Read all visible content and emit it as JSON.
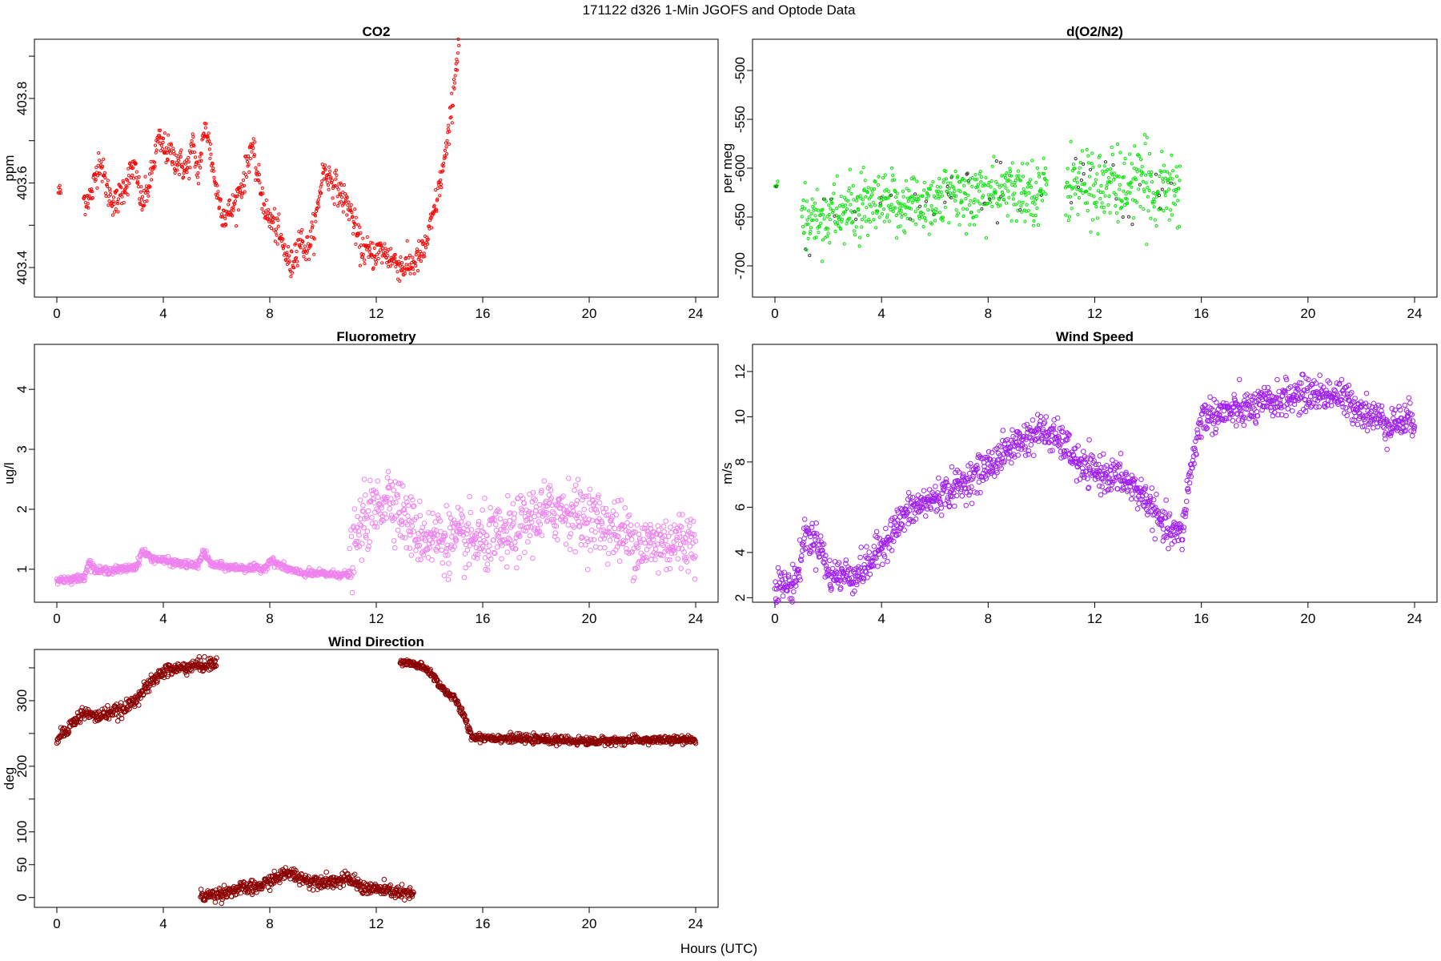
{
  "figure": {
    "main_title": "171122   d326   1-Min  JGOFS and Optode Data",
    "xlabel": "Hours (UTC)"
  },
  "colors": {
    "co2": "#ff0000",
    "o2n2": "#00e400",
    "o2n2_dark": "#2f2f2f",
    "fluoro": "#ee82ee",
    "wind_speed": "#a020f0",
    "wind_dir": "#8b0000",
    "axis": "#000000"
  },
  "chart_data": [
    {
      "id": "co2",
      "type": "scatter",
      "title": "CO2",
      "ylabel": "ppm",
      "xlim": [
        0,
        24
      ],
      "ylim": [
        403.33,
        403.94
      ],
      "xticks": [
        0,
        4,
        8,
        12,
        16,
        20,
        24
      ],
      "yticks": [
        403.4,
        403.5,
        403.6,
        403.7,
        403.8,
        403.9
      ],
      "ytick_labels": [
        "403.4",
        "",
        "403.6",
        "",
        "403.8",
        ""
      ],
      "color_key": "co2",
      "marker_size": 1.6,
      "points_per_hour": 60,
      "segments": [
        {
          "x0": 0.05,
          "x1": 0.15,
          "ctrl": [
            [
              0.05,
              403.58
            ],
            [
              0.15,
              403.58
            ]
          ],
          "noise": 0.01
        },
        {
          "x0": 1.0,
          "x1": 15.1,
          "ctrl": [
            [
              1.0,
              403.56
            ],
            [
              1.3,
              403.57
            ],
            [
              1.6,
              403.66
            ],
            [
              1.9,
              403.58
            ],
            [
              2.2,
              403.55
            ],
            [
              2.6,
              403.6
            ],
            [
              2.9,
              403.64
            ],
            [
              3.2,
              403.55
            ],
            [
              3.5,
              403.6
            ],
            [
              3.8,
              403.7
            ],
            [
              4.1,
              403.68
            ],
            [
              4.4,
              403.66
            ],
            [
              4.9,
              403.63
            ],
            [
              5.1,
              403.69
            ],
            [
              5.3,
              403.62
            ],
            [
              5.6,
              403.74
            ],
            [
              6.0,
              403.58
            ],
            [
              6.3,
              403.52
            ],
            [
              6.6,
              403.54
            ],
            [
              7.0,
              403.6
            ],
            [
              7.3,
              403.69
            ],
            [
              7.6,
              403.6
            ],
            [
              7.9,
              403.52
            ],
            [
              8.2,
              403.5
            ],
            [
              8.5,
              403.45
            ],
            [
              8.8,
              403.4
            ],
            [
              9.1,
              403.47
            ],
            [
              9.4,
              403.44
            ],
            [
              9.7,
              403.5
            ],
            [
              10.0,
              403.63
            ],
            [
              10.3,
              403.61
            ],
            [
              11.0,
              403.54
            ],
            [
              11.4,
              403.45
            ],
            [
              11.8,
              403.43
            ],
            [
              12.2,
              403.44
            ],
            [
              12.6,
              403.42
            ],
            [
              13.0,
              403.4
            ],
            [
              13.4,
              403.41
            ],
            [
              13.8,
              403.44
            ],
            [
              14.1,
              403.51
            ],
            [
              14.4,
              403.6
            ],
            [
              14.7,
              403.7
            ],
            [
              15.0,
              403.88
            ],
            [
              15.1,
              403.93
            ]
          ],
          "noise": 0.018
        }
      ]
    },
    {
      "id": "o2n2",
      "type": "scatter",
      "title": "d(O2/N2)",
      "ylabel": "per meg",
      "xlim": [
        0,
        24
      ],
      "ylim": [
        -732,
        -468
      ],
      "xticks": [
        0,
        4,
        8,
        12,
        16,
        20,
        24
      ],
      "yticks": [
        -700,
        -650,
        -600,
        -550,
        -500
      ],
      "ytick_labels": [
        "-700",
        "-650",
        "-600",
        "-550",
        "-500"
      ],
      "color_key": "o2n2",
      "marker_size": 1.6,
      "points_per_hour": 60,
      "segments": [
        {
          "x0": 0.0,
          "x1": 0.1,
          "ctrl": [
            [
              0.0,
              -618
            ],
            [
              0.1,
              -618
            ]
          ],
          "noise": 3
        },
        {
          "x0": 1.0,
          "x1": 10.2,
          "ctrl": [
            [
              1.0,
              -655
            ],
            [
              2.5,
              -645
            ],
            [
              4.0,
              -640
            ],
            [
              5.5,
              -635
            ],
            [
              7.0,
              -628
            ],
            [
              8.5,
              -625
            ],
            [
              10.2,
              -622
            ]
          ],
          "noise": 16
        },
        {
          "x0": 10.9,
          "x1": 15.2,
          "ctrl": [
            [
              10.9,
              -615
            ],
            [
              12.5,
              -620
            ],
            [
              14.0,
              -618
            ],
            [
              15.2,
              -620
            ]
          ],
          "noise": 20
        }
      ]
    },
    {
      "id": "fluoro",
      "type": "scatter",
      "title": "Fluorometry",
      "ylabel": "ug/l",
      "xlim": [
        0,
        24
      ],
      "ylim": [
        0.45,
        4.75
      ],
      "xticks": [
        0,
        4,
        8,
        12,
        16,
        20,
        24
      ],
      "yticks": [
        1,
        2,
        3,
        4
      ],
      "ytick_labels": [
        "1",
        "2",
        "3",
        "4"
      ],
      "color_key": "fluoro",
      "marker_size": 2.8,
      "points_per_hour": 60,
      "segments": [
        {
          "x0": 0.0,
          "x1": 11.0,
          "ctrl": [
            [
              0.0,
              0.82
            ],
            [
              1.0,
              0.85
            ],
            [
              1.2,
              1.12
            ],
            [
              1.5,
              0.97
            ],
            [
              2.5,
              1.0
            ],
            [
              3.0,
              1.05
            ],
            [
              3.2,
              1.3
            ],
            [
              3.6,
              1.18
            ],
            [
              4.5,
              1.1
            ],
            [
              5.3,
              1.06
            ],
            [
              5.5,
              1.3
            ],
            [
              5.8,
              1.08
            ],
            [
              6.5,
              1.03
            ],
            [
              7.8,
              1.01
            ],
            [
              8.0,
              1.15
            ],
            [
              8.6,
              1.02
            ],
            [
              9.0,
              0.95
            ],
            [
              9.5,
              0.93
            ],
            [
              11.0,
              0.91
            ]
          ],
          "noise": 0.03
        },
        {
          "x0": 11.0,
          "x1": 24.0,
          "ctrl": [
            [
              11.0,
              1.1
            ],
            [
              11.5,
              1.8
            ],
            [
              12.0,
              2.0
            ],
            [
              12.5,
              2.3
            ],
            [
              13.0,
              1.9
            ],
            [
              13.5,
              1.6
            ],
            [
              14.5,
              1.5
            ],
            [
              16.0,
              1.45
            ],
            [
              17.0,
              1.55
            ],
            [
              18.0,
              1.9
            ],
            [
              19.0,
              2.0
            ],
            [
              20.0,
              1.85
            ],
            [
              21.0,
              1.65
            ],
            [
              22.0,
              1.4
            ],
            [
              23.0,
              1.45
            ],
            [
              24.0,
              1.5
            ]
          ],
          "noise": 0.26
        }
      ]
    },
    {
      "id": "wind_speed",
      "type": "scatter",
      "title": "Wind Speed",
      "ylabel": "m/s",
      "xlim": [
        0,
        24
      ],
      "ylim": [
        1.8,
        13.2
      ],
      "xticks": [
        0,
        4,
        8,
        12,
        16,
        20,
        24
      ],
      "yticks": [
        2,
        4,
        6,
        8,
        10,
        12
      ],
      "ytick_labels": [
        "2",
        "4",
        "6",
        "8",
        "10",
        "12"
      ],
      "color_key": "wind_speed",
      "marker_size": 2.8,
      "points_per_hour": 60,
      "segments": [
        {
          "x0": 0.0,
          "x1": 24.0,
          "ctrl": [
            [
              0.0,
              2.6
            ],
            [
              0.6,
              2.5
            ],
            [
              0.9,
              3.2
            ],
            [
              1.1,
              4.8
            ],
            [
              1.7,
              4.4
            ],
            [
              2.0,
              3.0
            ],
            [
              3.0,
              3.0
            ],
            [
              3.5,
              3.4
            ],
            [
              4.0,
              4.3
            ],
            [
              5.0,
              5.8
            ],
            [
              6.0,
              6.4
            ],
            [
              7.0,
              7.0
            ],
            [
              8.0,
              7.8
            ],
            [
              9.0,
              8.8
            ],
            [
              10.0,
              9.4
            ],
            [
              10.6,
              9.0
            ],
            [
              11.0,
              8.6
            ],
            [
              11.5,
              7.7
            ],
            [
              13.0,
              7.3
            ],
            [
              14.0,
              6.3
            ],
            [
              14.5,
              5.2
            ],
            [
              15.0,
              4.8
            ],
            [
              15.3,
              4.9
            ],
            [
              15.5,
              7.0
            ],
            [
              16.0,
              10.0
            ],
            [
              17.0,
              10.2
            ],
            [
              18.0,
              10.4
            ],
            [
              19.0,
              10.8
            ],
            [
              20.0,
              11.0
            ],
            [
              21.0,
              11.0
            ],
            [
              22.0,
              10.3
            ],
            [
              23.0,
              9.7
            ],
            [
              24.0,
              9.9
            ]
          ],
          "noise": 0.38
        }
      ]
    },
    {
      "id": "wind_dir",
      "type": "scatter",
      "title": "Wind Direction",
      "ylabel": "deg",
      "xlim": [
        0,
        24
      ],
      "ylim": [
        -15,
        378
      ],
      "xticks": [
        0,
        4,
        8,
        12,
        16,
        20,
        24
      ],
      "yticks": [
        0,
        50,
        100,
        150,
        200,
        250,
        300,
        350
      ],
      "ytick_labels": [
        "0",
        "50",
        "100",
        "",
        "200",
        "",
        "300",
        ""
      ],
      "color_key": "wind_dir",
      "marker_size": 2.8,
      "points_per_hour": 60,
      "segments": [
        {
          "x0": 0.0,
          "x1": 6.0,
          "ctrl": [
            [
              0.0,
              242
            ],
            [
              0.5,
              262
            ],
            [
              1.0,
              282
            ],
            [
              1.5,
              275
            ],
            [
              2.0,
              283
            ],
            [
              2.5,
              285
            ],
            [
              3.0,
              305
            ],
            [
              3.5,
              325
            ],
            [
              4.0,
              345
            ],
            [
              5.0,
              352
            ],
            [
              6.0,
              357
            ]
          ],
          "noise": 5
        },
        {
          "x0": 5.4,
          "x1": 13.4,
          "ctrl": [
            [
              5.4,
              2
            ],
            [
              6.0,
              5
            ],
            [
              6.5,
              10
            ],
            [
              7.0,
              14
            ],
            [
              7.5,
              15
            ],
            [
              8.0,
              25
            ],
            [
              8.7,
              38
            ],
            [
              9.5,
              25
            ],
            [
              10.5,
              25
            ],
            [
              11.0,
              28
            ],
            [
              11.5,
              15
            ],
            [
              12.5,
              10
            ],
            [
              13.4,
              4
            ]
          ],
          "noise": 5
        },
        {
          "x0": 12.9,
          "x1": 24.0,
          "ctrl": [
            [
              12.9,
              358
            ],
            [
              13.5,
              355
            ],
            [
              14.0,
              345
            ],
            [
              14.5,
              318
            ],
            [
              15.0,
              300
            ],
            [
              15.3,
              275
            ],
            [
              15.6,
              245
            ],
            [
              16.0,
              244
            ],
            [
              18.0,
              241
            ],
            [
              20.0,
              238
            ],
            [
              22.0,
              240
            ],
            [
              24.0,
              240
            ]
          ],
          "noise": 3
        }
      ]
    }
  ]
}
